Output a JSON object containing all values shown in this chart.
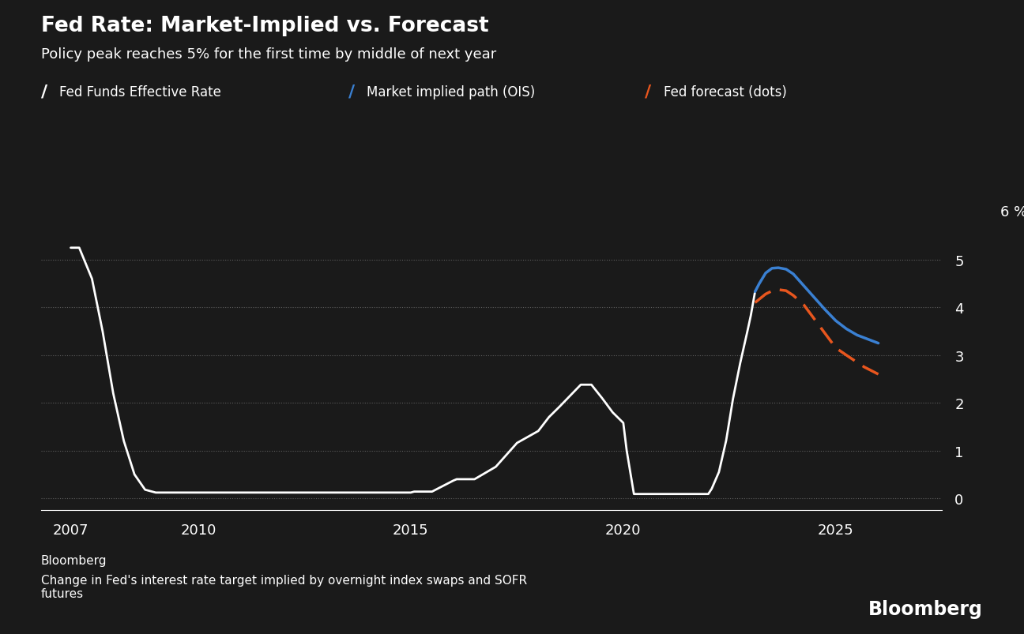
{
  "title": "Fed Rate: Market-Implied vs. Forecast",
  "subtitle": "Policy peak reaches 5% for the first time by middle of next year",
  "source_label": "Bloomberg",
  "footnote": "Change in Fed's interest rate target implied by overnight index swaps and SOFR\nfutures",
  "bloomberg_watermark": "Bloomberg",
  "background_color": "#1a1a1a",
  "text_color": "#ffffff",
  "grid_color": "#666666",
  "ylabel": "6 %",
  "ylim": [
    -0.25,
    6.4
  ],
  "yticks": [
    0,
    1,
    2,
    3,
    4,
    5
  ],
  "xlabel_years": [
    2007,
    2010,
    2015,
    2020,
    2025
  ],
  "xlim_start": 2006.3,
  "xlim_end": 2027.5,
  "white_line": {
    "label": "Fed Funds Effective Rate",
    "color": "#ffffff",
    "x": [
      2007.0,
      2007.2,
      2007.5,
      2007.75,
      2008.0,
      2008.25,
      2008.5,
      2008.75,
      2009.0,
      2009.25,
      2009.5,
      2010.0,
      2011.0,
      2012.0,
      2013.0,
      2014.0,
      2015.0,
      2015.08,
      2015.5,
      2016.0,
      2016.08,
      2016.5,
      2017.0,
      2017.5,
      2018.0,
      2018.25,
      2018.5,
      2018.75,
      2019.0,
      2019.25,
      2019.5,
      2019.75,
      2020.0,
      2020.08,
      2020.25,
      2020.5,
      2021.0,
      2021.5,
      2022.0,
      2022.08,
      2022.25,
      2022.42,
      2022.58,
      2022.75,
      2022.92,
      2023.0,
      2023.1
    ],
    "y": [
      5.25,
      5.25,
      4.6,
      3.5,
      2.2,
      1.2,
      0.5,
      0.18,
      0.12,
      0.12,
      0.12,
      0.12,
      0.12,
      0.12,
      0.12,
      0.12,
      0.12,
      0.14,
      0.14,
      0.37,
      0.4,
      0.4,
      0.66,
      1.16,
      1.41,
      1.7,
      1.92,
      2.15,
      2.38,
      2.38,
      2.1,
      1.8,
      1.58,
      1.0,
      0.09,
      0.09,
      0.09,
      0.09,
      0.09,
      0.2,
      0.55,
      1.21,
      2.08,
      2.83,
      3.5,
      3.83,
      4.33
    ]
  },
  "blue_line": {
    "label": "Market implied path (OIS)",
    "color": "#3a80d2",
    "x": [
      2023.1,
      2023.2,
      2023.35,
      2023.5,
      2023.65,
      2023.83,
      2024.0,
      2024.25,
      2024.5,
      2024.75,
      2025.0,
      2025.25,
      2025.5,
      2026.0
    ],
    "y": [
      4.33,
      4.5,
      4.72,
      4.82,
      4.83,
      4.8,
      4.7,
      4.45,
      4.2,
      3.95,
      3.72,
      3.55,
      3.42,
      3.25
    ]
  },
  "orange_line": {
    "label": "Fed forecast (dots)",
    "color": "#e8561e",
    "x": [
      2023.1,
      2023.35,
      2023.58,
      2023.83,
      2024.0,
      2024.25,
      2024.5,
      2024.75,
      2025.0,
      2025.33,
      2025.67,
      2026.0
    ],
    "y": [
      4.1,
      4.28,
      4.38,
      4.35,
      4.25,
      4.05,
      3.75,
      3.45,
      3.15,
      2.95,
      2.75,
      2.6
    ]
  }
}
